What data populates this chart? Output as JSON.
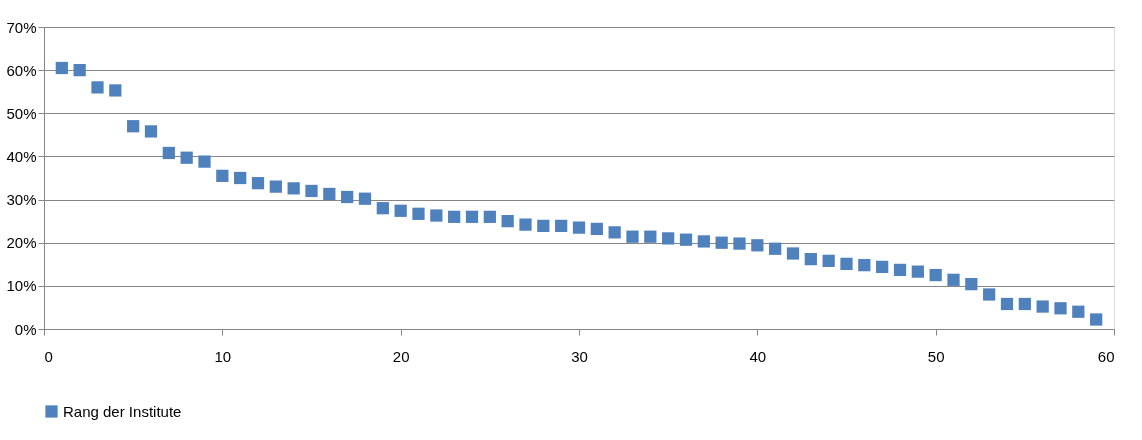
{
  "chart_data": {
    "type": "scatter",
    "x": [
      1,
      2,
      3,
      4,
      5,
      6,
      7,
      8,
      9,
      10,
      11,
      12,
      13,
      14,
      15,
      16,
      17,
      18,
      19,
      20,
      21,
      22,
      23,
      24,
      25,
      26,
      27,
      28,
      29,
      30,
      31,
      32,
      33,
      34,
      35,
      36,
      37,
      38,
      39,
      40,
      41,
      42,
      43,
      44,
      45,
      46,
      47,
      48,
      49,
      50,
      51,
      52,
      53,
      54,
      55,
      56,
      57,
      58,
      59
    ],
    "series": [
      {
        "name": "Rang der Institute",
        "color": "#4f81bd",
        "values": [
          60.5,
          60,
          56,
          55.3,
          47,
          45.8,
          40.8,
          39.7,
          38.8,
          35.5,
          35,
          33.8,
          33,
          32.6,
          32,
          31.3,
          30.6,
          30.2,
          28,
          27.4,
          26.7,
          26.3,
          26,
          26,
          26,
          25,
          24.2,
          23.9,
          23.9,
          23.5,
          23.2,
          22.4,
          21.4,
          21.4,
          21,
          20.7,
          20.3,
          20,
          19.8,
          19.4,
          18.6,
          17.5,
          16.2,
          15.8,
          15.1,
          14.8,
          14.4,
          13.7,
          13.3,
          12.5,
          11.4,
          10.4,
          8,
          5.8,
          5.8,
          5.2,
          4.8,
          4,
          2.2
        ]
      }
    ],
    "xlim": [
      0,
      60
    ],
    "xticks": [
      0,
      10,
      20,
      30,
      40,
      50,
      60
    ],
    "ylim": [
      0,
      70
    ],
    "yticks": [
      {
        "value": 0,
        "label": "0%"
      },
      {
        "value": 10,
        "label": "10%"
      },
      {
        "value": 20,
        "label": "20%"
      },
      {
        "value": 30,
        "label": "30%"
      },
      {
        "value": 40,
        "label": "40%"
      },
      {
        "value": 50,
        "label": "50%"
      },
      {
        "value": 60,
        "label": "60%"
      },
      {
        "value": 70,
        "label": "70%"
      }
    ],
    "grid": "y",
    "legend": "bottom",
    "marker": "square"
  }
}
